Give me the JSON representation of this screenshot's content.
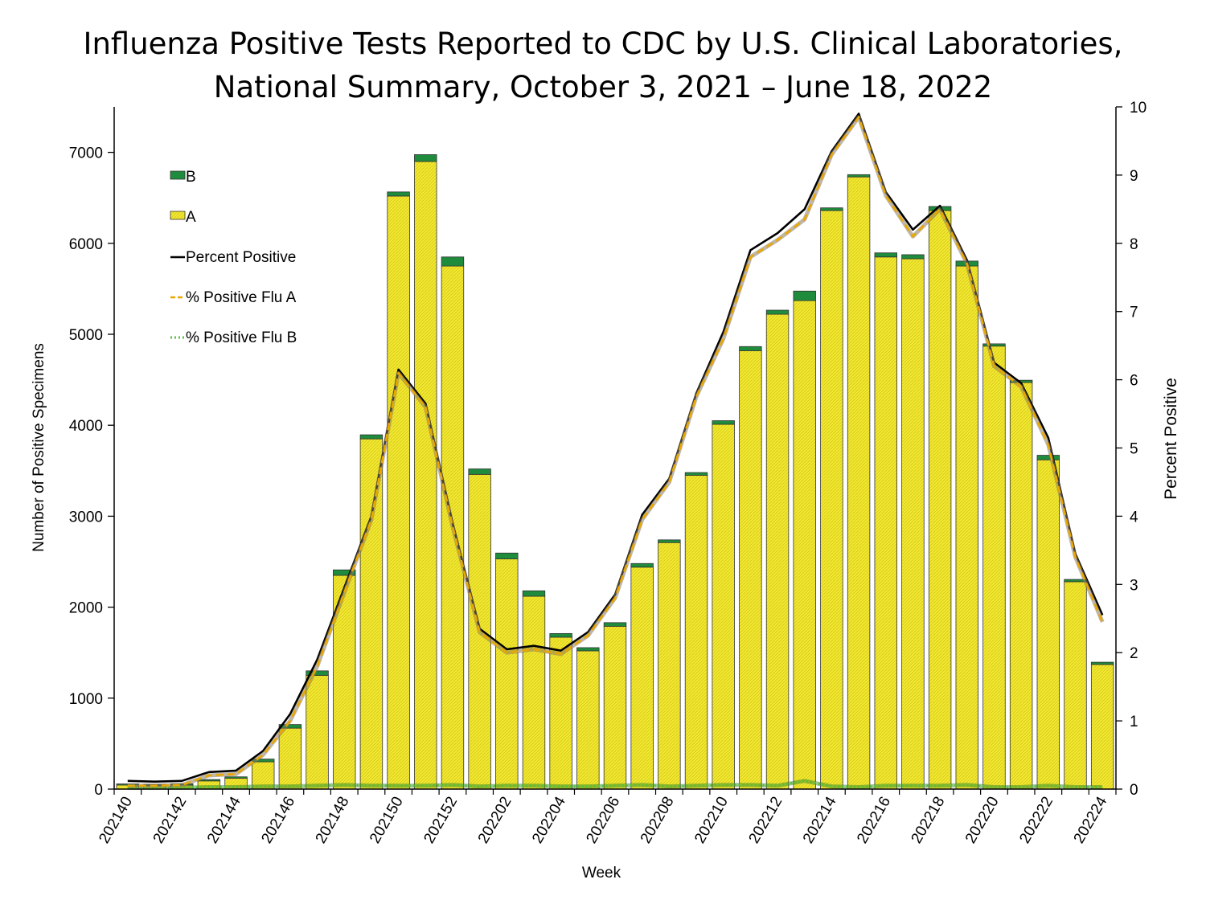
{
  "chart_data": {
    "type": "bar",
    "stacked": true,
    "title": [
      "Influenza Positive Tests Reported to CDC by U.S. Clinical Laboratories,",
      "National Summary, October 3, 2021 – June 18, 2022"
    ],
    "xlabel": "Week",
    "ylabel_left": "Number of Positive Specimens",
    "ylabel_right": "Percent Positive",
    "ylim_left": [
      0,
      7500
    ],
    "ylim_right": [
      0,
      10
    ],
    "yticks_left": [
      0,
      1000,
      2000,
      3000,
      4000,
      5000,
      6000,
      7000
    ],
    "yticks_right": [
      0,
      1,
      2,
      3,
      4,
      5,
      6,
      7,
      8,
      9,
      10
    ],
    "categories": [
      "202140",
      "202141",
      "202142",
      "202143",
      "202144",
      "202145",
      "202146",
      "202147",
      "202148",
      "202149",
      "202150",
      "202151",
      "202152",
      "202201",
      "202202",
      "202203",
      "202204",
      "202205",
      "202206",
      "202207",
      "202208",
      "202209",
      "202210",
      "202211",
      "202212",
      "202213",
      "202214",
      "202215",
      "202216",
      "202217",
      "202218",
      "202219",
      "202220",
      "202221",
      "202222",
      "202223",
      "202224"
    ],
    "xtick_labels": [
      "202140",
      "202142",
      "202144",
      "202146",
      "202148",
      "202150",
      "202152",
      "202202",
      "202204",
      "202206",
      "202208",
      "202210",
      "202212",
      "202214",
      "202216",
      "202218",
      "202220",
      "202222",
      "202224"
    ],
    "legend": {
      "placement": "top-left",
      "entries": [
        "B",
        "A",
        "Percent Positive",
        "% Positive Flu A",
        "% Positive Flu B"
      ]
    },
    "colors": {
      "A": "#f0e62a",
      "B": "#1e8c3c",
      "percent_positive": "#000000",
      "percent_a": "#e8a800",
      "percent_b": "#55c23a"
    },
    "series": [
      {
        "name": "A",
        "kind": "bar",
        "values": [
          45,
          40,
          45,
          90,
          120,
          300,
          670,
          1250,
          2350,
          3850,
          6520,
          6900,
          5750,
          3460,
          2530,
          2120,
          1670,
          1520,
          1790,
          2440,
          2710,
          3450,
          4010,
          4820,
          5220,
          5370,
          6360,
          6730,
          5850,
          5830,
          6360,
          5750,
          4870,
          4470,
          3620,
          2280,
          1370
        ]
      },
      {
        "name": "B",
        "kind": "bar",
        "values": [
          12,
          12,
          13,
          15,
          15,
          30,
          40,
          50,
          60,
          45,
          45,
          75,
          100,
          60,
          65,
          60,
          40,
          35,
          40,
          40,
          30,
          30,
          40,
          45,
          45,
          105,
          30,
          25,
          45,
          45,
          45,
          55,
          25,
          25,
          50,
          25,
          25
        ]
      },
      {
        "name": "Percent Positive",
        "kind": "line",
        "axis": "right",
        "values": [
          0.12,
          0.11,
          0.12,
          0.25,
          0.27,
          0.56,
          1.1,
          1.9,
          2.95,
          4.0,
          6.15,
          5.65,
          3.9,
          2.35,
          2.05,
          2.1,
          2.03,
          2.3,
          2.85,
          4.02,
          4.55,
          5.8,
          6.7,
          7.9,
          8.15,
          8.5,
          9.35,
          9.9,
          8.75,
          8.2,
          8.55,
          7.75,
          6.25,
          5.95,
          5.15,
          3.45,
          2.55
        ]
      },
      {
        "name": "% Positive Flu A",
        "kind": "line",
        "axis": "right",
        "values": [
          0.05,
          0.05,
          0.06,
          0.2,
          0.22,
          0.5,
          1.0,
          1.8,
          2.88,
          3.95,
          6.1,
          5.6,
          3.85,
          2.3,
          2.0,
          2.05,
          1.98,
          2.25,
          2.8,
          3.95,
          4.5,
          5.75,
          6.6,
          7.8,
          8.05,
          8.35,
          9.3,
          9.85,
          8.7,
          8.1,
          8.5,
          7.7,
          6.2,
          5.9,
          5.05,
          3.4,
          2.45
        ]
      },
      {
        "name": "% Positive Flu B",
        "kind": "line",
        "axis": "right",
        "values": [
          0.02,
          0.02,
          0.02,
          0.03,
          0.03,
          0.04,
          0.04,
          0.05,
          0.06,
          0.05,
          0.05,
          0.05,
          0.06,
          0.04,
          0.05,
          0.05,
          0.04,
          0.04,
          0.05,
          0.06,
          0.04,
          0.05,
          0.06,
          0.06,
          0.05,
          0.12,
          0.04,
          0.03,
          0.05,
          0.05,
          0.05,
          0.06,
          0.03,
          0.03,
          0.05,
          0.03,
          0.03
        ]
      }
    ]
  }
}
